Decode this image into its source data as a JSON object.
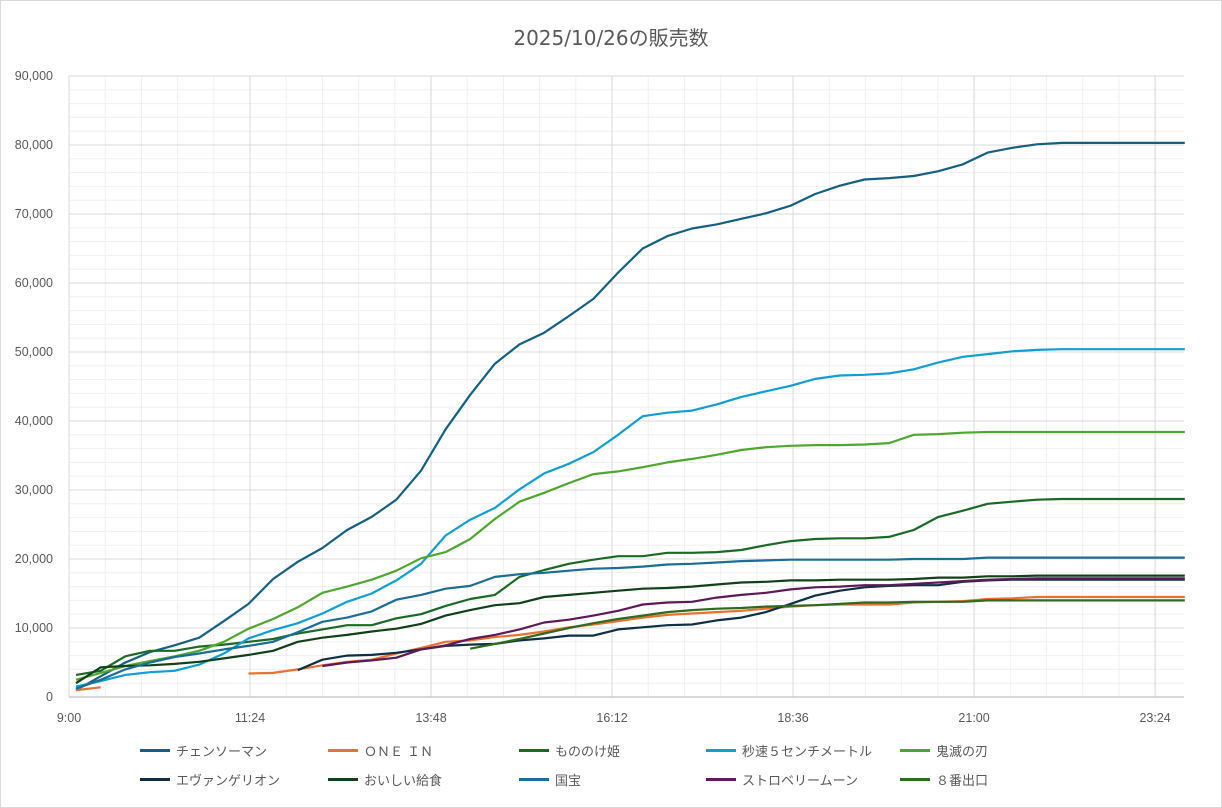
{
  "chart_data": {
    "type": "line",
    "title": "2025/10/26の販売数",
    "xlabel": "",
    "ylabel": "",
    "ylim": [
      0,
      90000
    ],
    "y_ticks": [
      "0",
      "10,000",
      "20,000",
      "30,000",
      "40,000",
      "50,000",
      "60,000",
      "70,000",
      "80,000",
      "90,000"
    ],
    "y_tick_values": [
      0,
      10000,
      20000,
      30000,
      40000,
      50000,
      60000,
      70000,
      80000,
      90000
    ],
    "x_ticks": [
      "9:00",
      "11:24",
      "13:48",
      "16:12",
      "18:36",
      "21:00",
      "23:24"
    ],
    "x_tick_minutes": [
      540,
      684,
      828,
      972,
      1116,
      1260,
      1404
    ],
    "xlim_minutes": [
      540,
      1427
    ],
    "x_start_minutes": 545.6,
    "x_step_minutes": 19.6,
    "grid": true,
    "legend_position": "bottom",
    "series": [
      {
        "name": "チェンソーマン",
        "color": "#156082",
        "values": [
          1000,
          3000,
          5000,
          6500,
          7500,
          8600,
          11000,
          13500,
          17100,
          19600,
          21600,
          24200,
          26100,
          28600,
          32800,
          38800,
          43800,
          48300,
          51100,
          52800,
          55200,
          57700,
          61500,
          65000,
          66800,
          67900,
          68500,
          69300,
          70100,
          71200,
          72900,
          74100,
          75000,
          75200,
          75500,
          76200,
          77200,
          78900,
          79600,
          80100,
          80300,
          80300,
          80300,
          80300,
          80300,
          80300
        ]
      },
      {
        "name": "ＯＮＥ ＩＮ",
        "color": "#E97132",
        "values": [
          1000,
          1400,
          null,
          null,
          null,
          null,
          null,
          3400,
          3500,
          4000,
          4600,
          5100,
          5400,
          6300,
          7100,
          8000,
          8200,
          8700,
          9000,
          9500,
          10100,
          10500,
          11000,
          11500,
          11900,
          12100,
          12300,
          12500,
          12800,
          13100,
          13300,
          13400,
          13400,
          13400,
          13700,
          13800,
          13900,
          14200,
          14300,
          14500,
          14500,
          14500,
          14500,
          14500,
          14500,
          14500
        ]
      },
      {
        "name": "もののけ姫",
        "color": "#196B24",
        "values": [
          3200,
          3800,
          5900,
          6700,
          6700,
          7300,
          7600,
          8000,
          8400,
          9200,
          9800,
          10400,
          10400,
          11400,
          12000,
          13200,
          14200,
          14800,
          17400,
          18400,
          19300,
          19900,
          20400,
          20400,
          20900,
          20900,
          21000,
          21300,
          22000,
          22600,
          22900,
          23000,
          23000,
          23200,
          24200,
          26100,
          27000,
          28000,
          28300,
          28600,
          28700,
          28700,
          28700,
          28700,
          28700,
          28700
        ]
      },
      {
        "name": "秒速５センチメートル",
        "color": "#0F9ED5",
        "values": [
          1500,
          2300,
          3200,
          3600,
          3800,
          4700,
          6300,
          8500,
          9700,
          10700,
          12100,
          13800,
          15000,
          16900,
          19300,
          23400,
          25700,
          27400,
          30100,
          32400,
          33800,
          35500,
          38000,
          40700,
          41200,
          41500,
          42400,
          43500,
          44300,
          45100,
          46100,
          46600,
          46700,
          46900,
          47500,
          48500,
          49300,
          49700,
          50100,
          50300,
          50400,
          50400,
          50400,
          50400,
          50400,
          50400
        ]
      },
      {
        "name": "鬼滅の刃",
        "color": "#4EA72E",
        "values": [
          2500,
          3500,
          4500,
          5200,
          5900,
          6700,
          8000,
          9900,
          11300,
          13000,
          15100,
          16000,
          17000,
          18300,
          20100,
          21000,
          22900,
          25800,
          28300,
          29600,
          31000,
          32300,
          32700,
          33300,
          34000,
          34500,
          35100,
          35800,
          36200,
          36400,
          36500,
          36500,
          36600,
          36800,
          38000,
          38100,
          38300,
          38400,
          38400,
          38400,
          38400,
          38400,
          38400,
          38400,
          38400,
          38400
        ]
      },
      {
        "name": "エヴァンゲリオン",
        "color": "#0E2F44",
        "values": [
          null,
          null,
          null,
          null,
          null,
          null,
          null,
          null,
          null,
          3900,
          5400,
          6000,
          6100,
          6400,
          6900,
          7400,
          7600,
          7700,
          8200,
          8500,
          8900,
          8900,
          9800,
          10100,
          10400,
          10500,
          11100,
          11500,
          12300,
          13500,
          14700,
          15400,
          15900,
          16100,
          16200,
          16200,
          16700,
          16900,
          17000,
          17000,
          17000,
          17000,
          17000,
          17000,
          17000,
          17000
        ]
      },
      {
        "name": "おいしい給食",
        "color": "#124119",
        "values": [
          2000,
          4300,
          4500,
          4600,
          4800,
          5100,
          5600,
          6100,
          6700,
          8000,
          8600,
          9000,
          9500,
          9900,
          10600,
          11800,
          12600,
          13300,
          13600,
          14500,
          14800,
          15100,
          15400,
          15700,
          15800,
          16000,
          16300,
          16600,
          16700,
          16900,
          16900,
          17000,
          17000,
          17000,
          17100,
          17300,
          17300,
          17500,
          17500,
          17600,
          17600,
          17600,
          17600,
          17600,
          17600,
          17600
        ]
      },
      {
        "name": "国宝",
        "color": "#1A6E95",
        "values": [
          1200,
          2500,
          4000,
          5000,
          5800,
          6300,
          6900,
          7400,
          8000,
          9400,
          10900,
          11500,
          12400,
          14100,
          14800,
          15700,
          16100,
          17400,
          17800,
          18000,
          18300,
          18600,
          18700,
          18900,
          19200,
          19300,
          19500,
          19700,
          19800,
          19900,
          19900,
          19900,
          19900,
          19900,
          20000,
          20000,
          20000,
          20200,
          20200,
          20200,
          20200,
          20200,
          20200,
          20200,
          20200,
          20200
        ]
      },
      {
        "name": "ストロベリームーン",
        "color": "#5F1958",
        "values": [
          null,
          null,
          null,
          null,
          null,
          null,
          null,
          null,
          null,
          null,
          4500,
          5000,
          5300,
          5700,
          6900,
          7500,
          8400,
          9000,
          9800,
          10800,
          11200,
          11800,
          12500,
          13400,
          13700,
          13800,
          14400,
          14800,
          15100,
          15600,
          15900,
          16000,
          16200,
          16200,
          16400,
          16600,
          16800,
          17000,
          17100,
          17200,
          17200,
          17200,
          17200,
          17200,
          17200,
          17200
        ]
      },
      {
        "name": "８番出口",
        "color": "#2F6A1D",
        "values": [
          null,
          null,
          null,
          null,
          null,
          null,
          null,
          null,
          null,
          null,
          null,
          null,
          null,
          null,
          null,
          null,
          7000,
          7700,
          8400,
          9200,
          10000,
          10700,
          11300,
          11800,
          12300,
          12600,
          12800,
          12900,
          13100,
          13200,
          13300,
          13500,
          13700,
          13700,
          13800,
          13800,
          13800,
          14000,
          14000,
          14000,
          14000,
          14000,
          14000,
          14000,
          14000,
          14000
        ]
      }
    ]
  }
}
